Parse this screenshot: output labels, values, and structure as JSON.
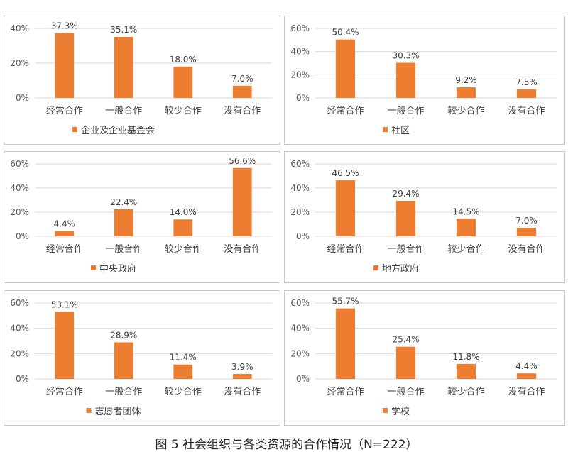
{
  "caption": "图 5 社会组织与各类资源的合作情况（N=222）",
  "chart_data": [
    {
      "type": "bar",
      "categories": [
        "经常合作",
        "一般合作",
        "较少合作",
        "没有合作"
      ],
      "series": [
        {
          "name": "企业及企业基金会",
          "values": [
            37.3,
            35.1,
            18.0,
            7.0
          ]
        }
      ],
      "data_labels": [
        "37.3%",
        "35.1%",
        "18.0%",
        "7.0%"
      ],
      "yticks": [
        "0%",
        "20%",
        "40%"
      ],
      "ylim": [
        0,
        40
      ],
      "grid": true,
      "legend": "bottom",
      "color": "#ed7d31"
    },
    {
      "type": "bar",
      "categories": [
        "经常合作",
        "一般合作",
        "较少合作",
        "没有合作"
      ],
      "series": [
        {
          "name": "社区",
          "values": [
            50.4,
            30.3,
            9.2,
            7.5
          ]
        }
      ],
      "data_labels": [
        "50.4%",
        "30.3%",
        "9.2%",
        "7.5%"
      ],
      "yticks": [
        "0%",
        "20%",
        "40%",
        "60%"
      ],
      "ylim": [
        0,
        60
      ],
      "grid": true,
      "legend": "bottom",
      "color": "#ed7d31"
    },
    {
      "type": "bar",
      "categories": [
        "经常合作",
        "一般合作",
        "较少合作",
        "没有合作"
      ],
      "series": [
        {
          "name": "中央政府",
          "values": [
            4.4,
            22.4,
            14.0,
            56.6
          ]
        }
      ],
      "data_labels": [
        "4.4%",
        "22.4%",
        "14.0%",
        "56.6%"
      ],
      "yticks": [
        "0%",
        "20%",
        "40%",
        "60%"
      ],
      "ylim": [
        0,
        60
      ],
      "grid": true,
      "legend": "bottom",
      "color": "#ed7d31"
    },
    {
      "type": "bar",
      "categories": [
        "经常合作",
        "一般合作",
        "较少合作",
        "没有合作"
      ],
      "series": [
        {
          "name": "地方政府",
          "values": [
            46.5,
            29.4,
            14.5,
            7.0
          ]
        }
      ],
      "data_labels": [
        "46.5%",
        "29.4%",
        "14.5%",
        "7.0%"
      ],
      "yticks": [
        "0%",
        "20%",
        "40%",
        "60%"
      ],
      "ylim": [
        0,
        60
      ],
      "grid": true,
      "legend": "bottom",
      "color": "#ed7d31"
    },
    {
      "type": "bar",
      "categories": [
        "经常合作",
        "一般合作",
        "较少合作",
        "没有合作"
      ],
      "series": [
        {
          "name": "志愿者团体",
          "values": [
            53.1,
            28.9,
            11.4,
            3.9
          ]
        }
      ],
      "data_labels": [
        "53.1%",
        "28.9%",
        "11.4%",
        "3.9%"
      ],
      "yticks": [
        "0%",
        "20%",
        "40%",
        "60%"
      ],
      "ylim": [
        0,
        60
      ],
      "grid": true,
      "legend": "bottom",
      "color": "#ed7d31"
    },
    {
      "type": "bar",
      "categories": [
        "经常合作",
        "一般合作",
        "较少合作",
        "没有合作"
      ],
      "series": [
        {
          "name": "学校",
          "values": [
            55.7,
            25.4,
            11.8,
            4.4
          ]
        }
      ],
      "data_labels": [
        "55.7%",
        "25.4%",
        "11.8%",
        "4.4%"
      ],
      "yticks": [
        "0%",
        "20%",
        "40%",
        "60%"
      ],
      "ylim": [
        0,
        60
      ],
      "grid": true,
      "legend": "bottom",
      "color": "#ed7d31"
    }
  ]
}
